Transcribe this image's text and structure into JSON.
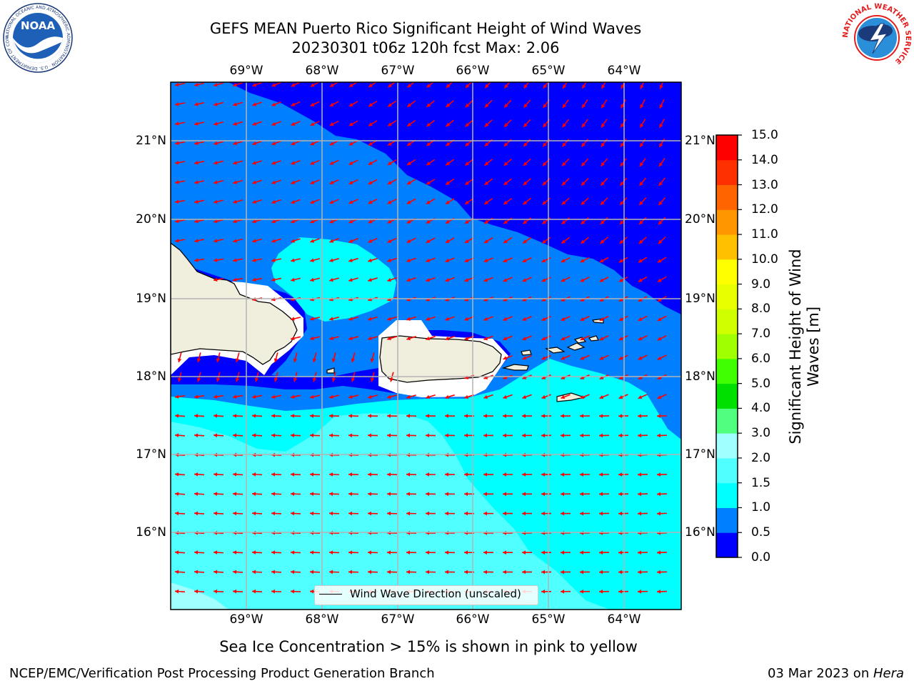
{
  "title": {
    "line1": "GEFS MEAN Puerto Rico Significant Height of Wind Waves",
    "line2": "20230301 t06z 120h fcst   Max: 2.06"
  },
  "axes": {
    "lon_ticks": [
      "69°W",
      "68°W",
      "67°W",
      "66°W",
      "65°W",
      "64°W"
    ],
    "lat_ticks": [
      "21°N",
      "20°N",
      "19°N",
      "18°N",
      "17°N",
      "16°N"
    ]
  },
  "legend": {
    "label": "Wind Wave Direction (unscaled)"
  },
  "colorbar": {
    "label": "Significant Height of Wind Waves [m]",
    "label_line1": "Significant Height of Wind",
    "label_line2": "Waves [m]",
    "ticks": [
      "15.0",
      "14.0",
      "13.0",
      "12.0",
      "11.0",
      "10.0",
      "9.0",
      "8.0",
      "7.0",
      "6.0",
      "5.0",
      "4.0",
      "3.0",
      "2.0",
      "1.5",
      "1.0",
      "0.5",
      "0.0"
    ],
    "colors_bottom_to_top": [
      "#0000ff",
      "#0080ff",
      "#00ffff",
      "#50ffff",
      "#a0ffff",
      "#50ff80",
      "#00e000",
      "#40ff00",
      "#a0ff00",
      "#d0ff00",
      "#e8ff00",
      "#ffff00",
      "#ffc000",
      "#ff9600",
      "#ff6400",
      "#ff3000",
      "#ff0000"
    ]
  },
  "note": "Sea Ice Concentration > 15% is shown in pink to yellow",
  "footer": {
    "left": "NCEP/EMC/Verification Post Processing Product Generation Branch",
    "date": "03 Mar 2023 on ",
    "machine": "Hera"
  },
  "logos": {
    "noaa_text": "NOAA",
    "noaa_ring": "NATIONAL OCEANIC AND ATMOSPHERIC ADMINISTRATION · U.S. DEPARTMENT OF COMMERCE",
    "nws_ring": "NATIONAL WEATHER SERVICE"
  },
  "chart_data": {
    "type": "heatmap",
    "title": "GEFS MEAN Puerto Rico Significant Height of Wind Waves",
    "subtitle": "20230301 t06z 120h fcst   Max: 2.06",
    "max_value": 2.06,
    "units": "m",
    "lon_range": [
      -70.0,
      -63.25
    ],
    "lat_range": [
      15.0,
      21.75
    ],
    "levels": [
      0.0,
      0.5,
      1.0,
      1.5,
      2.0,
      3.0,
      4.0,
      5.0,
      6.0,
      7.0,
      8.0,
      9.0,
      10.0,
      11.0,
      12.0,
      13.0,
      14.0,
      15.0
    ],
    "grid": true,
    "legend_position": "bottom-center",
    "colorbar_position": "right",
    "vector_field": "Wind Wave Direction (unscaled)",
    "vector_direction": "mostly westward in south, south-southwestward in northeast"
  }
}
